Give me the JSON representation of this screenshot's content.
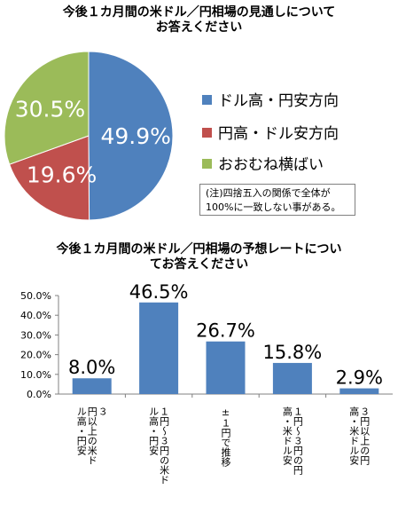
{
  "chart_data": [
    {
      "type": "pie",
      "title": "今後１カ月間の米ドル／円相場の見通しについて\nお答えください",
      "title_lines": [
        "今後１カ月間の米ドル／円相場の見通しについて",
        "お答えください"
      ],
      "slices": [
        {
          "name": "ドル高・円安方向",
          "value": 49.9,
          "label": "49.9%",
          "color": "#4f81bd"
        },
        {
          "name": "円高・ドル安方向",
          "value": 19.6,
          "label": "19.6%",
          "color": "#c0504d"
        },
        {
          "name": "おおむね横ばい",
          "value": 30.5,
          "label": "30.5%",
          "color": "#9bbb59"
        }
      ],
      "legend_position": "right",
      "note_lines": [
        "(注)四捨五入の関係で全体が",
        "100%に一致しない事がある。"
      ]
    },
    {
      "type": "bar",
      "title": "今後１カ月間の米ドル／円相場の予想レートについ\nてお答えください",
      "title_lines": [
        "今後１カ月間の米ドル／円相場の予想レートについ",
        "てお答えください"
      ],
      "categories": [
        [
          "３",
          "円以上の米ド",
          "ル高・円安"
        ],
        [
          "１円～３円の米ド",
          "ル高・円安"
        ],
        [
          "±１円で推移"
        ],
        [
          "１円～３円の円",
          "高・米ドル安"
        ],
        [
          "３円以上の円",
          "高・米ドル安"
        ]
      ],
      "values": [
        8.0,
        46.5,
        26.7,
        15.8,
        2.9
      ],
      "data_labels": [
        "8.0%",
        "46.5%",
        "26.7%",
        "15.8%",
        "2.9%"
      ],
      "y_ticks": [
        "0.0%",
        "10.0%",
        "20.0%",
        "30.0%",
        "40.0%",
        "50.0%"
      ],
      "ylim": [
        0,
        50
      ],
      "color": "#4f81bd",
      "grid": false
    }
  ]
}
